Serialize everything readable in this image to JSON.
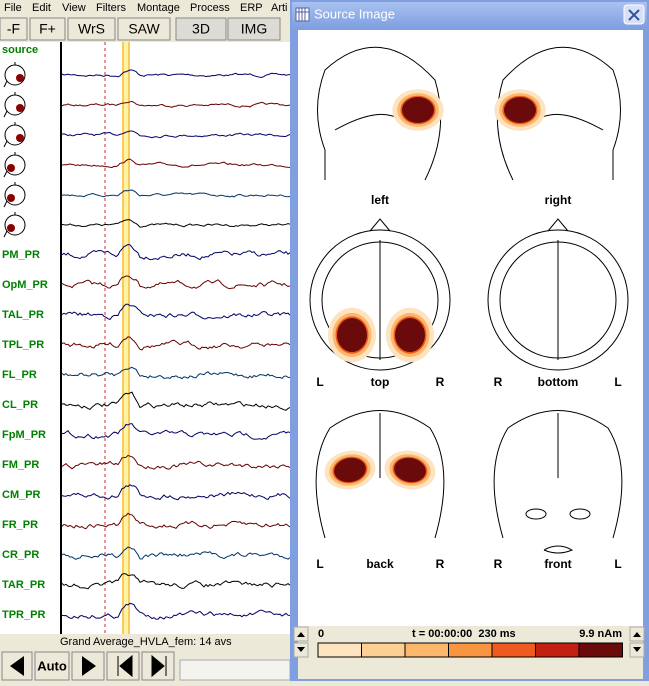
{
  "menu": [
    "File",
    "Edit",
    "View",
    "Filters",
    "Montage",
    "Process",
    "ERP",
    "Arti"
  ],
  "toolbar": [
    "-F",
    "F+",
    "WrS",
    "SAW",
    "3D",
    "IMG"
  ],
  "channels": {
    "source_label": "source",
    "labels": [
      "PM_PR",
      "OpM_PR",
      "TAL_PR",
      "TPL_PR",
      "FL_PR",
      "CL_PR",
      "FpM_PR",
      "FM_PR",
      "CM_PR",
      "FR_PR",
      "CR_PR",
      "TAR_PR",
      "TPR_PR"
    ]
  },
  "status": "Grand Average_HVLA_fem: 14 avs",
  "controls": {
    "auto": "Auto"
  },
  "window": {
    "title": "Source Image",
    "views": [
      {
        "name": "left"
      },
      {
        "name": "right"
      },
      {
        "name": "top",
        "left": "L",
        "right": "R"
      },
      {
        "name": "bottom",
        "left": "R",
        "right": "L"
      },
      {
        "name": "back",
        "left": "L",
        "right": "R"
      },
      {
        "name": "front",
        "left": "R",
        "right": "L"
      }
    ],
    "colorbar": {
      "min": "0",
      "time": "t = 00:00:00  230 ms",
      "max": "9.9 nAm"
    }
  }
}
